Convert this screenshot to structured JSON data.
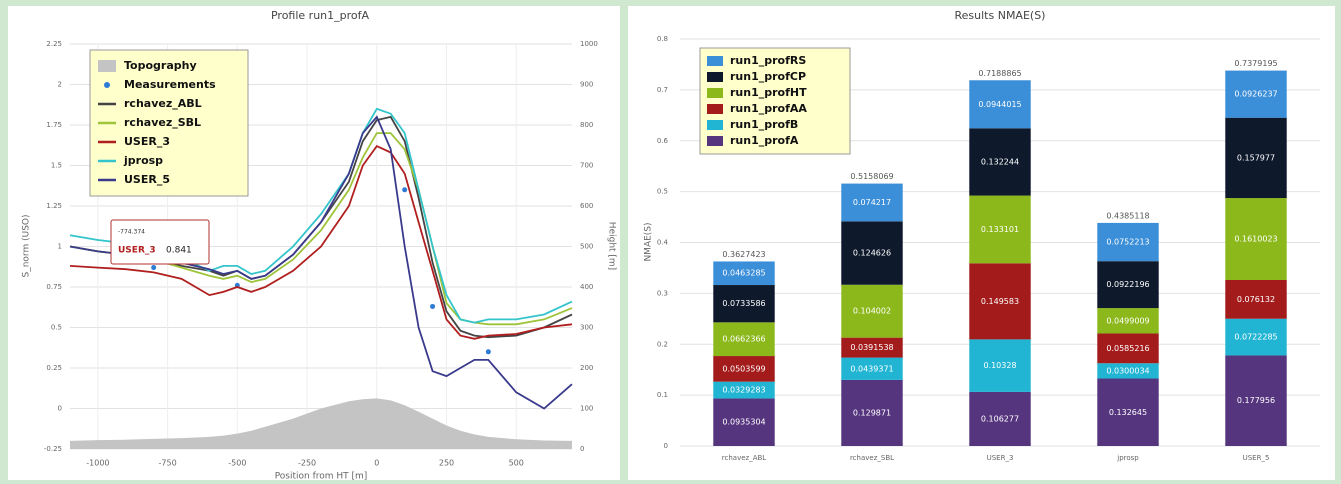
{
  "chart_data": [
    {
      "type": "line",
      "title": "Profile run1_profA",
      "x_label": "Position from HT [m]",
      "y_label": "S_norm (USO)",
      "y2_label": "Height [m]",
      "x": [
        -1100,
        -1000,
        -900,
        -800,
        -700,
        -600,
        -550,
        -500,
        -450,
        -400,
        -300,
        -200,
        -100,
        -50,
        0,
        50,
        100,
        150,
        200,
        250,
        300,
        350,
        400,
        500,
        600,
        700
      ],
      "xlim": [
        -1100,
        700
      ],
      "xticks": [
        -1000,
        -750,
        -500,
        -250,
        0,
        250,
        500
      ],
      "ylim": [
        -0.25,
        2.25
      ],
      "yticks": [
        -0.25,
        0,
        0.25,
        0.5,
        0.75,
        1,
        1.25,
        1.5,
        1.75,
        2,
        2.25
      ],
      "y2lim": [
        0,
        1000
      ],
      "y2ticks": [
        0,
        100,
        200,
        300,
        400,
        500,
        600,
        700,
        800,
        900,
        1000
      ],
      "grid": true,
      "legend": "upper-left",
      "series": [
        {
          "name": "Topography",
          "color": "#c4c4c4",
          "style": "area",
          "axis": "y2",
          "values": [
            20,
            22,
            23,
            25,
            27,
            30,
            33,
            38,
            45,
            55,
            75,
            100,
            118,
            123,
            125,
            120,
            108,
            92,
            75,
            58,
            45,
            36,
            30,
            24,
            21,
            20
          ]
        },
        {
          "name": "Measurements",
          "color": "#2e7bd6",
          "style": "markers",
          "values": [
            null,
            null,
            null,
            0.87,
            null,
            null,
            null,
            0.76,
            null,
            null,
            null,
            null,
            null,
            null,
            null,
            null,
            1.35,
            null,
            0.63,
            null,
            null,
            null,
            0.35,
            null,
            null,
            null
          ]
        },
        {
          "name": "rchavez_ABL",
          "color": "#444444",
          "style": "line",
          "values": [
            1.0,
            0.97,
            0.95,
            0.92,
            0.88,
            0.85,
            0.82,
            0.85,
            0.8,
            0.82,
            0.95,
            1.15,
            1.4,
            1.65,
            1.78,
            1.8,
            1.65,
            1.3,
            0.9,
            0.6,
            0.48,
            0.45,
            0.44,
            0.45,
            0.5,
            0.58
          ]
        },
        {
          "name": "rchavez_SBL",
          "color": "#9ec43a",
          "style": "line",
          "values": [
            1.0,
            0.97,
            0.95,
            0.92,
            0.87,
            0.82,
            0.8,
            0.82,
            0.78,
            0.8,
            0.92,
            1.1,
            1.35,
            1.55,
            1.7,
            1.7,
            1.6,
            1.35,
            1.0,
            0.65,
            0.55,
            0.53,
            0.52,
            0.52,
            0.55,
            0.62
          ]
        },
        {
          "name": "USER_3",
          "color": "#b01e1e",
          "style": "line",
          "values": [
            0.88,
            0.87,
            0.86,
            0.84,
            0.8,
            0.7,
            0.72,
            0.75,
            0.72,
            0.75,
            0.85,
            1.0,
            1.25,
            1.5,
            1.62,
            1.58,
            1.45,
            1.15,
            0.85,
            0.55,
            0.45,
            0.43,
            0.45,
            0.46,
            0.5,
            0.52
          ]
        },
        {
          "name": "jprosp",
          "color": "#33c4cc",
          "style": "line",
          "values": [
            1.07,
            1.04,
            1.02,
            0.98,
            0.93,
            0.85,
            0.88,
            0.88,
            0.83,
            0.85,
            1.0,
            1.2,
            1.45,
            1.7,
            1.85,
            1.82,
            1.7,
            1.35,
            1.0,
            0.7,
            0.55,
            0.53,
            0.55,
            0.55,
            0.58,
            0.66
          ]
        },
        {
          "name": "USER_5",
          "color": "#3a3a8c",
          "style": "line",
          "values": [
            1.0,
            0.97,
            0.95,
            0.93,
            0.9,
            0.86,
            0.83,
            0.85,
            0.8,
            0.82,
            0.95,
            1.15,
            1.45,
            1.7,
            1.8,
            1.6,
            1.0,
            0.5,
            0.23,
            0.2,
            0.25,
            0.3,
            0.3,
            0.1,
            0.0,
            0.15
          ]
        }
      ],
      "tooltip": {
        "title": "-774.374",
        "series": "USER_3",
        "value": 0.841
      }
    },
    {
      "type": "bar",
      "title": "Results NMAE(S)",
      "y_label": "NMAE(S)",
      "stacked": true,
      "legend": "upper-left",
      "categories": [
        "rchavez_ABL",
        "rchavez_SBL",
        "USER_3",
        "jprosp",
        "USER_5"
      ],
      "ylim": [
        0,
        0.8
      ],
      "yticks": [
        0,
        0.1,
        0.2,
        0.3,
        0.4,
        0.5,
        0.6,
        0.7,
        0.8
      ],
      "grid": true,
      "totals": [
        0.3627423,
        0.5158069,
        0.7188865,
        0.4385118,
        0.7379195
      ],
      "series": [
        {
          "name": "run1_profA",
          "color": "#56357f",
          "values": [
            0.0935304,
            0.129871,
            0.106277,
            0.132645,
            0.177956
          ]
        },
        {
          "name": "run1_profB",
          "color": "#22b5d3",
          "values": [
            0.0329283,
            0.0439371,
            0.10328,
            0.0300034,
            0.0722285
          ]
        },
        {
          "name": "run1_profAA",
          "color": "#a31b1b",
          "values": [
            0.0503599,
            0.0391538,
            0.149583,
            0.0585216,
            0.076132
          ]
        },
        {
          "name": "run1_profHT",
          "color": "#8cb81c",
          "values": [
            0.0662366,
            0.104002,
            0.133101,
            0.0499009,
            0.1610023
          ]
        },
        {
          "name": "run1_profCP",
          "color": "#0e1a2c",
          "values": [
            0.0733586,
            0.124626,
            0.132244,
            0.0922196,
            0.157977
          ]
        },
        {
          "name": "run1_profRS",
          "color": "#3b8ed8",
          "values": [
            0.0463285,
            0.074217,
            0.0944015,
            0.0752213,
            0.0926237
          ]
        }
      ]
    }
  ]
}
